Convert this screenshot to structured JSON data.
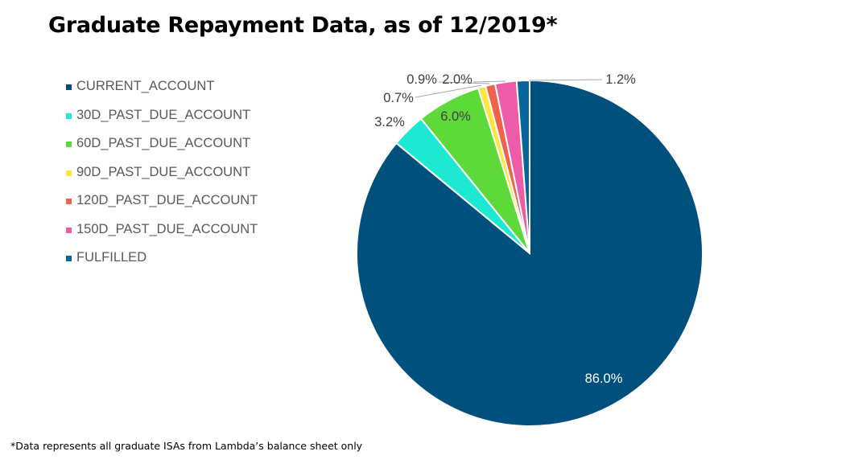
{
  "title": "Graduate Repayment Data, as of 12/2019*",
  "footnote": "*Data represents all graduate ISAs from Lambda’s balance sheet only",
  "chart_data": {
    "type": "pie",
    "title": "Graduate Repayment Data, as of 12/2019*",
    "start_angle_deg": 0,
    "direction": "clockwise",
    "legend_position": "left",
    "slices": [
      {
        "label": "CURRENT_ACCOUNT",
        "value": 86.0,
        "display": "86.0%",
        "color": "#00507E",
        "label_color": "#FFFFFF"
      },
      {
        "label": "30D_PAST_DUE_ACCOUNT",
        "value": 3.2,
        "display": "3.2%",
        "color": "#1DE9D3",
        "label_color": "#404040"
      },
      {
        "label": "60D_PAST_DUE_ACCOUNT",
        "value": 6.0,
        "display": "6.0%",
        "color": "#5ED93A",
        "label_color": "#404040"
      },
      {
        "label": "90D_PAST_DUE_ACCOUNT",
        "value": 0.7,
        "display": "0.7%",
        "color": "#FFE53D",
        "label_color": "#404040"
      },
      {
        "label": "120D_PAST_DUE_ACCOUNT",
        "value": 0.9,
        "display": "0.9%",
        "color": "#F0624B",
        "label_color": "#404040"
      },
      {
        "label": "150D_PAST_DUE_ACCOUNT",
        "value": 2.0,
        "display": "2.0%",
        "color": "#EE5BA8",
        "label_color": "#404040"
      },
      {
        "label": "FULFILLED",
        "value": 1.2,
        "display": "1.2%",
        "color": "#05659C",
        "label_color": "#404040"
      }
    ]
  }
}
